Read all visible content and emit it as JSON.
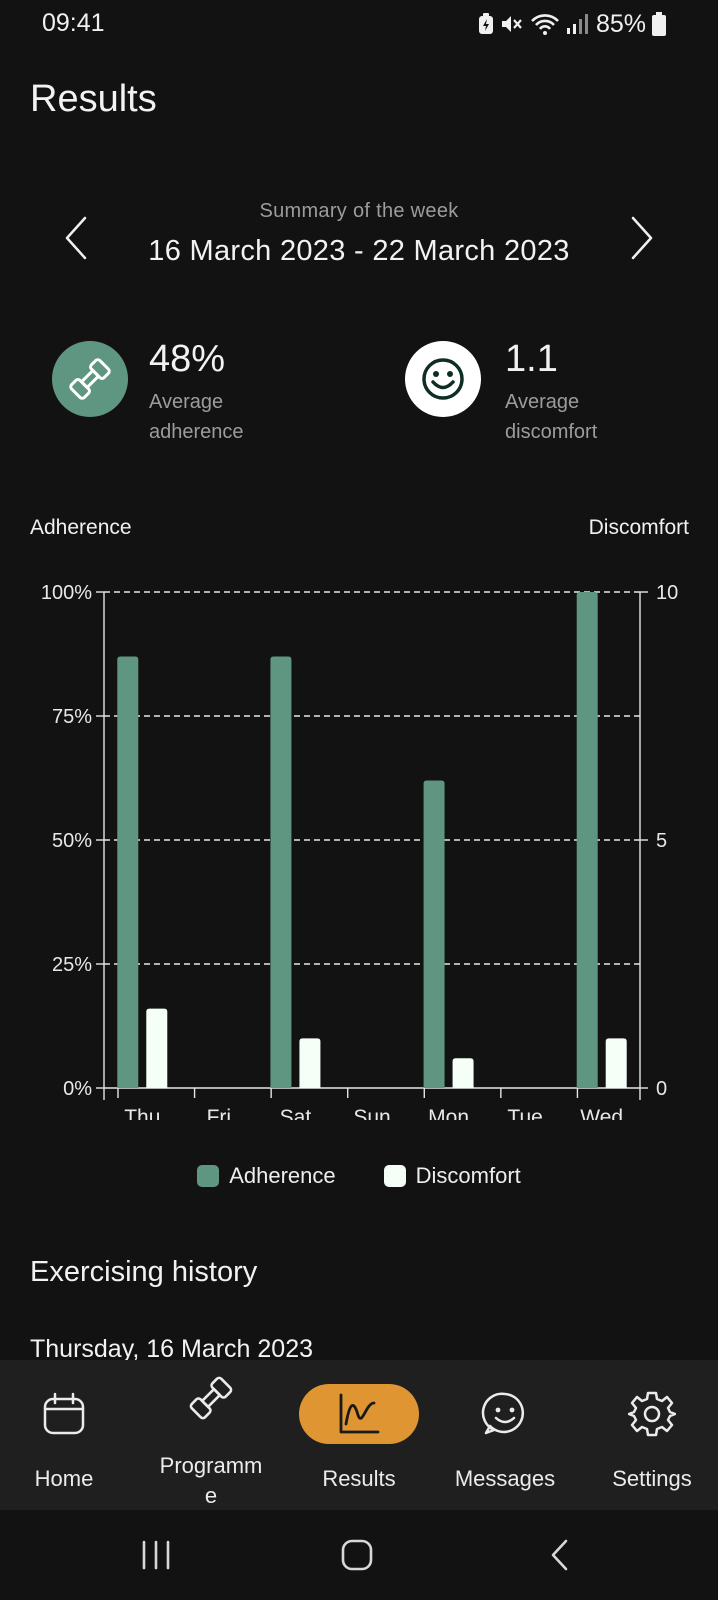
{
  "status_bar": {
    "time": "09:41",
    "battery_percent": "85%",
    "icons": [
      "battery-saver-icon",
      "mute-icon",
      "wifi-icon",
      "signal-icon",
      "battery-icon"
    ]
  },
  "header": {
    "title": "Results"
  },
  "week": {
    "subtitle": "Summary of the week",
    "range": "16 March 2023 - 22 March 2023"
  },
  "stats": {
    "adherence": {
      "value": "48%",
      "label": "Average adherence",
      "icon": "dumbbell-icon"
    },
    "discomfort": {
      "value": "1.1",
      "label": "Average discomfort",
      "icon": "smiley-icon"
    }
  },
  "chart_data": {
    "type": "bar",
    "left_axis_title": "Adherence",
    "right_axis_title": "Discomfort",
    "categories": [
      "Thu",
      "Fri",
      "Sat",
      "Sun",
      "Mon",
      "Tue",
      "Wed"
    ],
    "series": [
      {
        "name": "Adherence",
        "axis": "left",
        "color": "#5f9682",
        "values": [
          87,
          0,
          87,
          0,
          62,
          0,
          100
        ]
      },
      {
        "name": "Discomfort",
        "axis": "right",
        "color": "#f5fff8",
        "values": [
          1.6,
          0,
          1.0,
          0,
          0.6,
          0,
          1.0
        ]
      }
    ],
    "left_axis": {
      "ylim": [
        0,
        100
      ],
      "ticks": [
        "0%",
        "25%",
        "50%",
        "75%",
        "100%"
      ]
    },
    "right_axis": {
      "ylim": [
        0,
        10
      ],
      "ticks": [
        "0",
        "5",
        "10"
      ]
    },
    "grid": "dashed horizontal",
    "legend_placement": "bottom-center"
  },
  "history": {
    "title": "Exercising history",
    "first_date": "Thursday, 16 March 2023"
  },
  "bottom_nav": {
    "tabs": [
      {
        "label": "Home",
        "icon": "calendar-icon",
        "active": false
      },
      {
        "label": "Programm\ne",
        "icon": "dumbbell-icon",
        "active": false
      },
      {
        "label": "Results",
        "icon": "chart-icon",
        "active": true
      },
      {
        "label": "Messages",
        "icon": "chat-smiley-icon",
        "active": false
      },
      {
        "label": "Settings",
        "icon": "gear-icon",
        "active": false
      }
    ],
    "active_color": "#e09533"
  },
  "system_nav": {
    "buttons": [
      "recents-icon",
      "home-icon",
      "back-icon"
    ]
  }
}
